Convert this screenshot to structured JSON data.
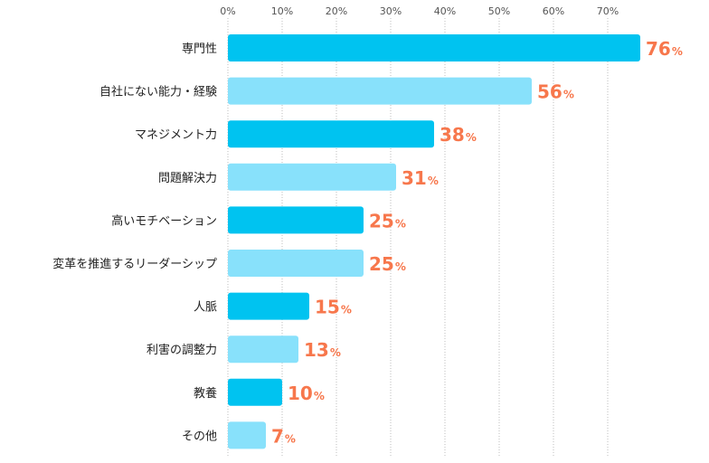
{
  "chart_data": {
    "type": "bar",
    "orientation": "horizontal",
    "categories": [
      "専門性",
      "自社にない能力・経験",
      "マネジメント力",
      "問題解決力",
      "高いモチベーション",
      "変革を推進するリーダーシップ",
      "人脈",
      "利害の調整力",
      "教養",
      "その他"
    ],
    "values": [
      76,
      56,
      38,
      31,
      25,
      25,
      15,
      13,
      10,
      7
    ],
    "value_labels": [
      "76",
      "56",
      "38",
      "31",
      "25",
      "25",
      "15",
      "13",
      "10",
      "7"
    ],
    "value_unit": "%",
    "x_tick_labels": [
      "0%",
      "10%",
      "20%",
      "30%",
      "40%",
      "50%",
      "60%",
      "70%"
    ],
    "xlim": [
      0,
      70
    ],
    "grid": true,
    "colors": {
      "bar_primary": "#00c3f0",
      "bar_secondary": "#88e1fb",
      "value_label": "#f7774c",
      "grid": "#bdbdbd"
    }
  }
}
